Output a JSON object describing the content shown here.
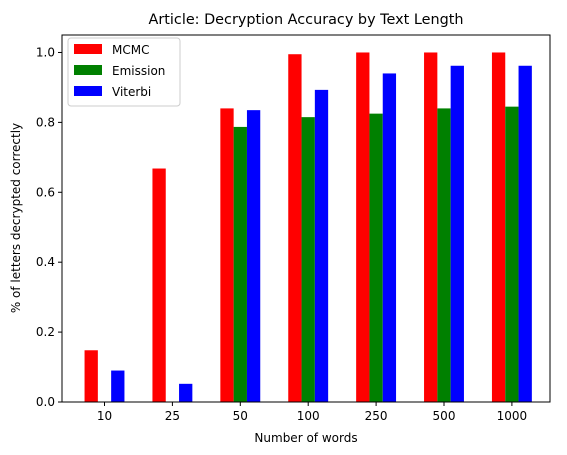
{
  "chart_data": {
    "type": "bar",
    "title": "Article: Decryption Accuracy by Text Length",
    "xlabel": "Number of words",
    "ylabel": "% of letters decrypted correctly",
    "categories": [
      "10",
      "25",
      "50",
      "100",
      "250",
      "500",
      "1000"
    ],
    "ylim": [
      0,
      1.05
    ],
    "yticks": [
      "0.0",
      "0.2",
      "0.4",
      "0.6",
      "0.8",
      "1.0"
    ],
    "legend_position": "upper-left",
    "grid": false,
    "series": [
      {
        "name": "MCMC",
        "color": "#ff0000",
        "values": [
          0.148,
          0.668,
          0.84,
          0.995,
          1.0,
          1.0,
          1.0
        ]
      },
      {
        "name": "Emission",
        "color": "#008000",
        "values": [
          0.0,
          0.0,
          0.787,
          0.815,
          0.825,
          0.84,
          0.845
        ]
      },
      {
        "name": "Viterbi",
        "color": "#0000ff",
        "values": [
          0.09,
          0.052,
          0.835,
          0.893,
          0.94,
          0.962,
          0.962
        ]
      }
    ]
  }
}
